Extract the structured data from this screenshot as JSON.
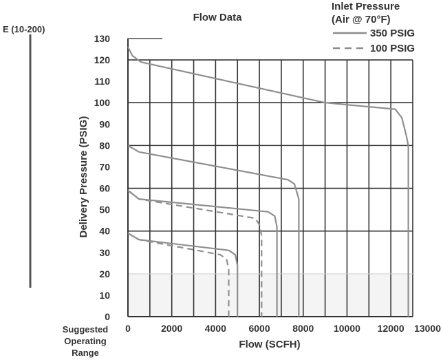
{
  "chart_data": {
    "type": "line",
    "title": "Flow Data",
    "model_label": "E (10-200)",
    "xlabel": "Flow (SCFH)",
    "ylabel": "Delivery Pressure (PSIG)",
    "side_note": [
      "Suggested",
      "Operating",
      "Range"
    ],
    "xlim": [
      0,
      13000
    ],
    "ylim": [
      0,
      130
    ],
    "x_ticks": [
      0,
      2000,
      4000,
      6000,
      8000,
      10000,
      12000,
      13000
    ],
    "y_ticks": [
      0,
      10,
      20,
      30,
      40,
      50,
      60,
      70,
      80,
      90,
      100,
      110,
      120,
      130
    ],
    "grid": true,
    "legend": {
      "title": [
        "Inlet Pressure",
        "(Air @ 70°F)"
      ],
      "position": "top-right",
      "entries": [
        {
          "label": "350 PSIG",
          "style": "solid"
        },
        {
          "label": "100 PSIG",
          "style": "dashed"
        }
      ]
    },
    "series": [
      {
        "label": "350 PSIG",
        "style": "solid",
        "setpoint": 120,
        "points": [
          [
            0,
            126
          ],
          [
            200,
            122
          ],
          [
            600,
            119
          ],
          [
            9000,
            100
          ],
          [
            12200,
            97
          ],
          [
            12500,
            93
          ],
          [
            12700,
            85
          ],
          [
            12800,
            80
          ],
          [
            12800,
            0
          ]
        ]
      },
      {
        "label": "350 PSIG",
        "style": "solid",
        "setpoint": 80,
        "points": [
          [
            0,
            80
          ],
          [
            500,
            77
          ],
          [
            7300,
            64
          ],
          [
            7600,
            62
          ],
          [
            7800,
            55
          ],
          [
            7800,
            0
          ]
        ]
      },
      {
        "label": "350 PSIG",
        "style": "solid",
        "setpoint": 60,
        "points": [
          [
            0,
            59
          ],
          [
            500,
            55
          ],
          [
            6400,
            49
          ],
          [
            6700,
            47
          ],
          [
            6800,
            42
          ],
          [
            6800,
            0
          ]
        ]
      },
      {
        "label": "100 PSIG",
        "style": "dashed",
        "setpoint": 60,
        "points": [
          [
            0,
            59
          ],
          [
            500,
            55
          ],
          [
            5800,
            46
          ],
          [
            6000,
            43
          ],
          [
            6100,
            38
          ],
          [
            6100,
            0
          ]
        ]
      },
      {
        "label": "350 PSIG",
        "style": "solid",
        "setpoint": 40,
        "points": [
          [
            0,
            39
          ],
          [
            500,
            36
          ],
          [
            4600,
            31
          ],
          [
            4900,
            29
          ],
          [
            5000,
            24
          ],
          [
            5000,
            0
          ]
        ]
      },
      {
        "label": "100 PSIG",
        "style": "dashed",
        "setpoint": 40,
        "points": [
          [
            0,
            39
          ],
          [
            500,
            36
          ],
          [
            4200,
            29
          ],
          [
            4500,
            27
          ],
          [
            4600,
            22
          ],
          [
            4600,
            0
          ]
        ]
      }
    ]
  }
}
